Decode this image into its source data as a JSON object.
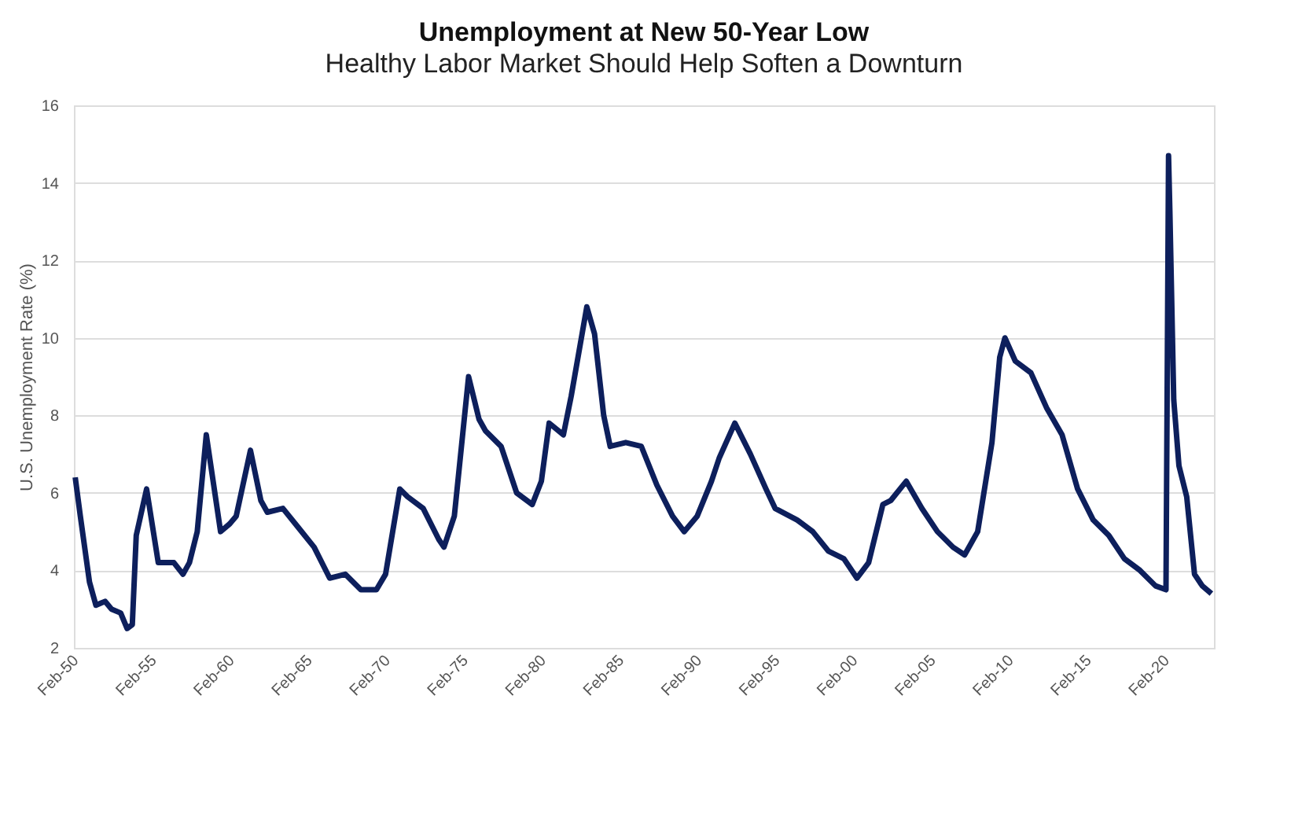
{
  "chart_data": {
    "type": "line",
    "title": "Unemployment at New 50-Year Low",
    "subtitle": "Healthy Labor Market Should Help Soften a Downturn",
    "ylabel": "U.S. Unemployment  Rate (%)",
    "x": [
      "1950-02",
      "1950-06",
      "1951-01",
      "1951-06",
      "1952-01",
      "1952-06",
      "1953-01",
      "1953-06",
      "1953-10",
      "1954-01",
      "1954-09",
      "1955-06",
      "1956-06",
      "1957-01",
      "1957-06",
      "1957-12",
      "1958-07",
      "1959-06",
      "1960-01",
      "1960-06",
      "1961-05",
      "1962-01",
      "1962-06",
      "1963-06",
      "1964-06",
      "1965-06",
      "1966-06",
      "1967-06",
      "1968-06",
      "1969-06",
      "1970-01",
      "1970-12",
      "1971-06",
      "1972-06",
      "1973-06",
      "1973-10",
      "1974-06",
      "1975-05",
      "1976-01",
      "1976-06",
      "1977-06",
      "1978-06",
      "1979-06",
      "1980-01",
      "1980-07",
      "1981-06",
      "1981-12",
      "1982-12",
      "1983-06",
      "1984-01",
      "1984-06",
      "1985-06",
      "1986-06",
      "1987-06",
      "1988-06",
      "1989-03",
      "1990-01",
      "1990-12",
      "1991-06",
      "1992-06",
      "1993-06",
      "1994-06",
      "1995-01",
      "1996-06",
      "1997-06",
      "1998-06",
      "1999-06",
      "2000-04",
      "2001-01",
      "2001-12",
      "2002-06",
      "2003-06",
      "2004-06",
      "2005-06",
      "2006-06",
      "2007-03",
      "2008-01",
      "2008-12",
      "2009-06",
      "2009-10",
      "2010-06",
      "2011-06",
      "2012-06",
      "2013-06",
      "2014-06",
      "2015-06",
      "2016-06",
      "2017-06",
      "2018-06",
      "2019-06",
      "2020-02",
      "2020-04",
      "2020-05",
      "2020-08",
      "2020-12",
      "2021-06",
      "2021-12",
      "2022-06",
      "2023-01"
    ],
    "series": [
      {
        "color": "#0d1f5c",
        "values": [
          6.4,
          5.4,
          3.7,
          3.1,
          3.2,
          3.0,
          2.9,
          2.5,
          2.6,
          4.9,
          6.1,
          4.2,
          4.2,
          3.9,
          4.2,
          5.0,
          7.5,
          5.0,
          5.2,
          5.4,
          7.1,
          5.8,
          5.5,
          5.6,
          5.1,
          4.6,
          3.8,
          3.9,
          3.5,
          3.5,
          3.9,
          6.1,
          5.9,
          5.6,
          4.8,
          4.6,
          5.4,
          9.0,
          7.9,
          7.6,
          7.2,
          6.0,
          5.7,
          6.3,
          7.8,
          7.5,
          8.5,
          10.8,
          10.1,
          8.0,
          7.2,
          7.3,
          7.2,
          6.2,
          5.4,
          5.0,
          5.4,
          6.3,
          6.9,
          7.8,
          7.0,
          6.1,
          5.6,
          5.3,
          5.0,
          4.5,
          4.3,
          3.8,
          4.2,
          5.7,
          5.8,
          6.3,
          5.6,
          5.0,
          4.6,
          4.4,
          5.0,
          7.3,
          9.5,
          10.0,
          9.4,
          9.1,
          8.2,
          7.5,
          6.1,
          5.3,
          4.9,
          4.3,
          4.0,
          3.6,
          3.5,
          14.7,
          13.3,
          8.4,
          6.7,
          5.9,
          3.9,
          3.6,
          3.4
        ]
      }
    ],
    "xlim": [
      "1950-01",
      "2023-03"
    ],
    "xticks": [
      {
        "value": "1950-02",
        "label": "Feb-50"
      },
      {
        "value": "1955-02",
        "label": "Feb-55"
      },
      {
        "value": "1960-02",
        "label": "Feb-60"
      },
      {
        "value": "1965-02",
        "label": "Feb-65"
      },
      {
        "value": "1970-02",
        "label": "Feb-70"
      },
      {
        "value": "1975-02",
        "label": "Feb-75"
      },
      {
        "value": "1980-02",
        "label": "Feb-80"
      },
      {
        "value": "1985-02",
        "label": "Feb-85"
      },
      {
        "value": "1990-02",
        "label": "Feb-90"
      },
      {
        "value": "1995-02",
        "label": "Feb-95"
      },
      {
        "value": "2000-02",
        "label": "Feb-00"
      },
      {
        "value": "2005-02",
        "label": "Feb-05"
      },
      {
        "value": "2010-02",
        "label": "Feb-10"
      },
      {
        "value": "2015-02",
        "label": "Feb-15"
      },
      {
        "value": "2020-02",
        "label": "Feb-20"
      }
    ],
    "ylim": [
      2,
      16
    ],
    "yticks": [
      2,
      4,
      6,
      8,
      10,
      12,
      14,
      16
    ],
    "grid": "y",
    "marker": "none",
    "line_style": "solid"
  }
}
